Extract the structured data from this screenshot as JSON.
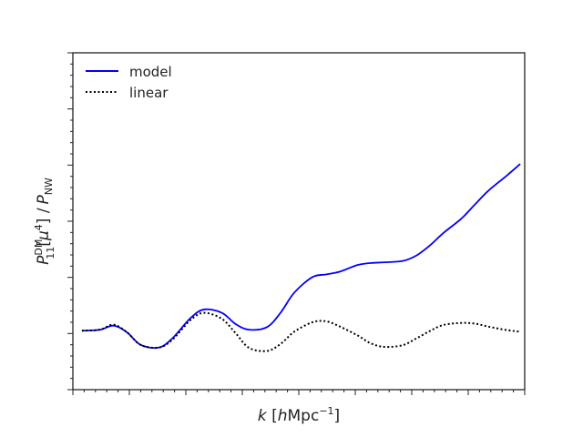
{
  "chart_data": {
    "type": "line",
    "title": "",
    "xlabel": "k [hMpc^-1]",
    "ylabel": "P11^DM[μ^4] / P_NW",
    "xlim": [
      0.0,
      1.0
    ],
    "ylim": [
      0.0,
      1.0
    ],
    "tick_labels_visible": false,
    "grid": false,
    "legend": "top-left",
    "series": [
      {
        "name": "model",
        "color": "#0000ff",
        "style": "solid",
        "x": [
          0.02,
          0.06,
          0.09,
          0.12,
          0.15,
          0.19,
          0.22,
          0.26,
          0.29,
          0.33,
          0.36,
          0.39,
          0.43,
          0.46,
          0.49,
          0.53,
          0.56,
          0.59,
          0.63,
          0.66,
          0.69,
          0.73,
          0.76,
          0.79,
          0.82,
          0.86,
          0.89,
          0.92,
          0.96,
          0.99
        ],
        "y": [
          0.175,
          0.178,
          0.19,
          0.17,
          0.133,
          0.125,
          0.152,
          0.212,
          0.238,
          0.228,
          0.195,
          0.178,
          0.186,
          0.229,
          0.288,
          0.334,
          0.342,
          0.35,
          0.37,
          0.376,
          0.378,
          0.382,
          0.398,
          0.428,
          0.465,
          0.508,
          0.55,
          0.591,
          0.635,
          0.67
        ]
      },
      {
        "name": "linear",
        "color": "#000000",
        "style": "dotted",
        "x": [
          0.02,
          0.06,
          0.09,
          0.12,
          0.15,
          0.19,
          0.22,
          0.26,
          0.29,
          0.33,
          0.36,
          0.39,
          0.43,
          0.46,
          0.49,
          0.53,
          0.56,
          0.59,
          0.63,
          0.66,
          0.69,
          0.73,
          0.76,
          0.79,
          0.82,
          0.86,
          0.89,
          0.92,
          0.96,
          0.99
        ],
        "y": [
          0.175,
          0.178,
          0.193,
          0.17,
          0.133,
          0.125,
          0.148,
          0.206,
          0.228,
          0.21,
          0.168,
          0.124,
          0.115,
          0.136,
          0.172,
          0.2,
          0.203,
          0.188,
          0.161,
          0.137,
          0.127,
          0.132,
          0.152,
          0.174,
          0.192,
          0.198,
          0.196,
          0.187,
          0.177,
          0.172
        ]
      }
    ]
  },
  "labels": {
    "legend_model": "model",
    "legend_linear": "linear"
  }
}
